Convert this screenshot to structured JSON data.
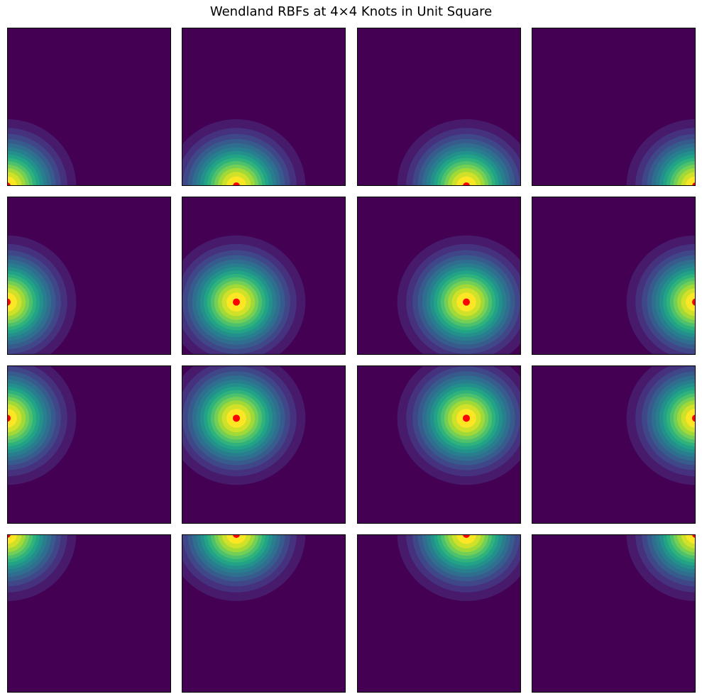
{
  "title": "Wendland RBFs at 4×4 Knots in Unit Square",
  "chart_data": {
    "type": "heatmap",
    "title": "Wendland RBFs at 4×4 Knots in Unit Square",
    "grid": [
      4,
      4
    ],
    "xlim": [
      0,
      1
    ],
    "ylim": [
      0,
      1
    ],
    "support_radius": 0.67,
    "contour_levels": 14,
    "colormap": [
      "#440154",
      "#482878",
      "#3e4989",
      "#31688e",
      "#26828e",
      "#1f9e89",
      "#35b779",
      "#6ece58",
      "#b5de2b",
      "#fde725"
    ],
    "knot_color": "#ff0000",
    "axes_ticks": false,
    "panels": [
      {
        "knot": [
          0.0,
          0.0
        ]
      },
      {
        "knot": [
          0.0,
          0.3333
        ]
      },
      {
        "knot": [
          0.0,
          0.6667
        ]
      },
      {
        "knot": [
          0.0,
          1.0
        ]
      },
      {
        "knot": [
          0.3333,
          0.0
        ]
      },
      {
        "knot": [
          0.3333,
          0.3333
        ]
      },
      {
        "knot": [
          0.3333,
          0.6667
        ]
      },
      {
        "knot": [
          0.3333,
          1.0
        ]
      },
      {
        "knot": [
          0.6667,
          0.0
        ]
      },
      {
        "knot": [
          0.6667,
          0.3333
        ]
      },
      {
        "knot": [
          0.6667,
          0.6667
        ]
      },
      {
        "knot": [
          0.6667,
          1.0
        ]
      },
      {
        "knot": [
          1.0,
          0.0
        ]
      },
      {
        "knot": [
          1.0,
          0.3333
        ]
      },
      {
        "knot": [
          1.0,
          0.6667
        ]
      },
      {
        "knot": [
          1.0,
          1.0
        ]
      }
    ]
  }
}
